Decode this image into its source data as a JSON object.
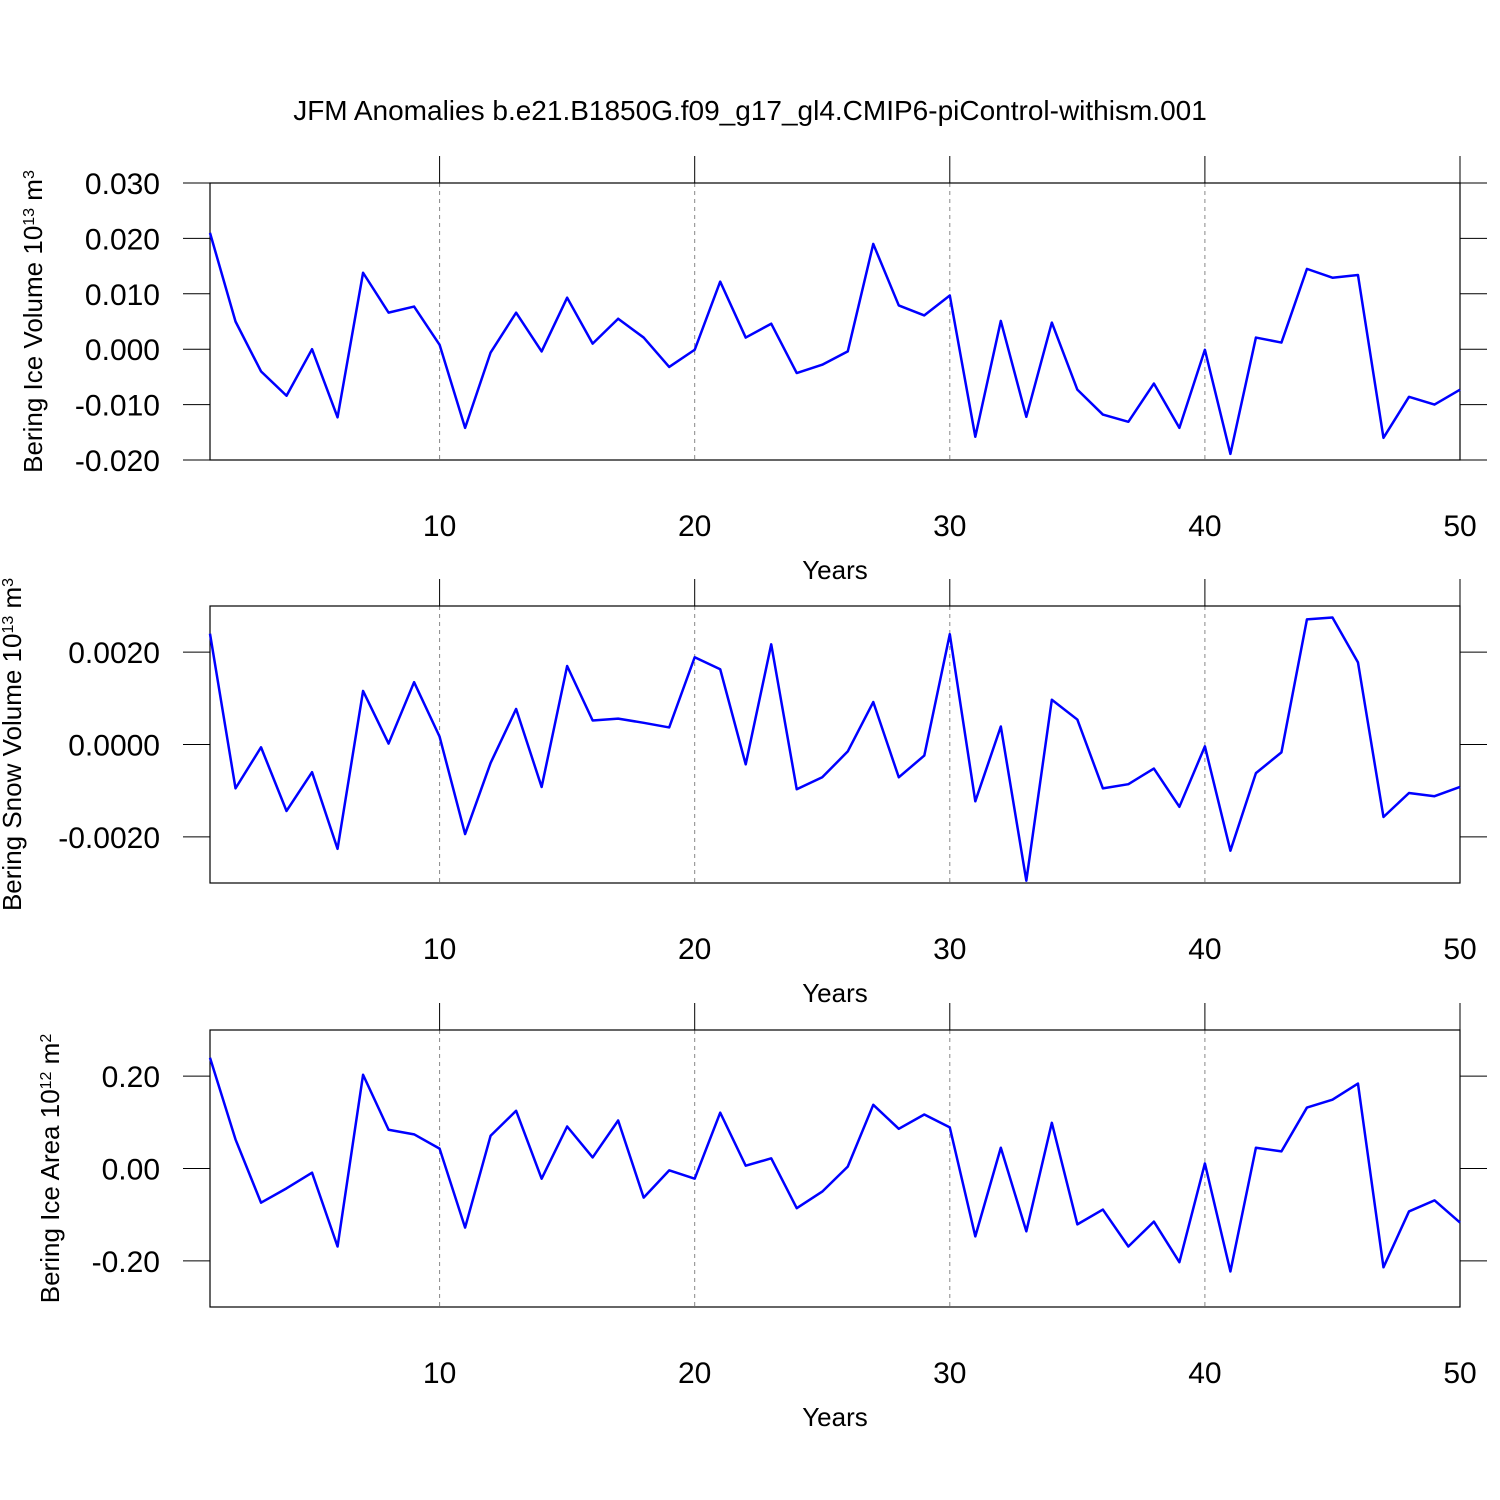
{
  "title": "JFM Anomalies b.e21.B1850G.f09_g17_gl4.CMIP6-piControl-withism.001",
  "chart_data": [
    {
      "type": "line",
      "xlabel": "Years",
      "ylabel": {
        "text": "Bering Ice Volume 10",
        "power": "13",
        "unit": " m",
        "unit_power": "3"
      },
      "x": [
        1,
        2,
        3,
        4,
        5,
        6,
        7,
        8,
        9,
        10,
        11,
        12,
        13,
        14,
        15,
        16,
        17,
        18,
        19,
        20,
        21,
        22,
        23,
        24,
        25,
        26,
        27,
        28,
        29,
        30,
        31,
        32,
        33,
        34,
        35,
        36,
        37,
        38,
        39,
        40,
        41,
        42,
        43,
        44,
        45,
        46,
        47,
        48,
        49,
        50
      ],
      "xlim": [
        1,
        50
      ],
      "xticks": [
        10,
        20,
        30,
        40,
        50
      ],
      "ylim": [
        -0.02,
        0.03
      ],
      "yticks": [
        {
          "value": -0.02,
          "label": "-0.020"
        },
        {
          "value": -0.01,
          "label": "-0.010"
        },
        {
          "value": 0,
          "label": "0.000"
        },
        {
          "value": 0.01,
          "label": "0.010"
        },
        {
          "value": 0.02,
          "label": "0.020"
        },
        {
          "value": 0.03,
          "label": "0.030"
        }
      ],
      "grid": true,
      "series": [
        {
          "color": "#0000ff",
          "values": [
            0.021,
            0.005,
            -0.004,
            -0.0084,
            0.0,
            -0.0123,
            0.0138,
            0.0066,
            0.0077,
            0.0008,
            -0.0142,
            -0.0006,
            0.0066,
            -0.0004,
            0.0093,
            0.001,
            0.0055,
            0.0021,
            -0.0032,
            -0.0001,
            0.0122,
            0.0021,
            0.0046,
            -0.0043,
            -0.0028,
            -0.0004,
            0.019,
            0.0079,
            0.0061,
            0.0097,
            -0.0158,
            0.0051,
            -0.0122,
            0.0048,
            -0.0073,
            -0.0118,
            -0.0131,
            -0.0062,
            -0.0142,
            -0.0001,
            -0.0189,
            0.0021,
            0.0012,
            0.0145,
            0.0129,
            0.0134,
            -0.016,
            -0.0086,
            -0.01,
            -0.0073
          ]
        }
      ]
    },
    {
      "type": "line",
      "xlabel": "Years",
      "ylabel": {
        "text": "Bering Snow Volume 10",
        "power": "13",
        "unit": " m",
        "unit_power": "3"
      },
      "x": [
        1,
        2,
        3,
        4,
        5,
        6,
        7,
        8,
        9,
        10,
        11,
        12,
        13,
        14,
        15,
        16,
        17,
        18,
        19,
        20,
        21,
        22,
        23,
        24,
        25,
        26,
        27,
        28,
        29,
        30,
        31,
        32,
        33,
        34,
        35,
        36,
        37,
        38,
        39,
        40,
        41,
        42,
        43,
        44,
        45,
        46,
        47,
        48,
        49,
        50
      ],
      "xlim": [
        1,
        50
      ],
      "xticks": [
        10,
        20,
        30,
        40,
        50
      ],
      "ylim": [
        -0.003,
        0.003
      ],
      "yticks": [
        {
          "value": -0.002,
          "label": "-0.0020"
        },
        {
          "value": 0,
          "label": "0.0000"
        },
        {
          "value": 0.002,
          "label": "0.0020"
        }
      ],
      "grid": true,
      "series": [
        {
          "color": "#0000ff",
          "values": [
            0.0024,
            -0.00095,
            -6e-05,
            -0.00144,
            -0.0006,
            -0.00226,
            0.00116,
            2e-05,
            0.00135,
            0.00017,
            -0.00194,
            -0.0004,
            0.00077,
            -0.00092,
            0.0017,
            0.00052,
            0.00056,
            0.00047,
            0.00037,
            0.00189,
            0.00163,
            -0.00043,
            0.00217,
            -0.00097,
            -0.00071,
            -0.00015,
            0.00092,
            -0.00071,
            -0.00024,
            0.00239,
            -0.00123,
            0.00039,
            -0.00295,
            0.00097,
            0.00054,
            -0.00095,
            -0.00086,
            -0.00052,
            -0.00135,
            -4e-05,
            -0.0023,
            -0.00062,
            -0.00017,
            0.00271,
            0.00275,
            0.00178,
            -0.00157,
            -0.00105,
            -0.00112,
            -0.00092
          ]
        }
      ]
    },
    {
      "type": "line",
      "xlabel": "Years",
      "ylabel": {
        "text": "Bering Ice Area 10",
        "power": "12",
        "unit": " m",
        "unit_power": "2"
      },
      "x": [
        1,
        2,
        3,
        4,
        5,
        6,
        7,
        8,
        9,
        10,
        11,
        12,
        13,
        14,
        15,
        16,
        17,
        18,
        19,
        20,
        21,
        22,
        23,
        24,
        25,
        26,
        27,
        28,
        29,
        30,
        31,
        32,
        33,
        34,
        35,
        36,
        37,
        38,
        39,
        40,
        41,
        42,
        43,
        44,
        45,
        46,
        47,
        48,
        49,
        50
      ],
      "xlim": [
        1,
        50
      ],
      "xticks": [
        10,
        20,
        30,
        40,
        50
      ],
      "ylim": [
        -0.3,
        0.3
      ],
      "yticks": [
        {
          "value": -0.2,
          "label": "-0.20"
        },
        {
          "value": 0,
          "label": "0.00"
        },
        {
          "value": 0.2,
          "label": "0.20"
        }
      ],
      "grid": true,
      "series": [
        {
          "color": "#0000ff",
          "values": [
            0.24,
            0.063,
            -0.074,
            -0.043,
            -0.009,
            -0.169,
            0.203,
            0.084,
            0.074,
            0.043,
            -0.128,
            0.071,
            0.125,
            -0.022,
            0.091,
            0.024,
            0.104,
            -0.063,
            -0.004,
            -0.022,
            0.121,
            0.006,
            0.022,
            -0.086,
            -0.05,
            0.004,
            0.138,
            0.086,
            0.117,
            0.089,
            -0.147,
            0.045,
            -0.136,
            0.099,
            -0.121,
            -0.089,
            -0.169,
            -0.115,
            -0.203,
            0.011,
            -0.223,
            0.045,
            0.037,
            0.132,
            0.149,
            0.184,
            -0.214,
            -0.093,
            -0.069,
            -0.117
          ]
        }
      ]
    }
  ]
}
